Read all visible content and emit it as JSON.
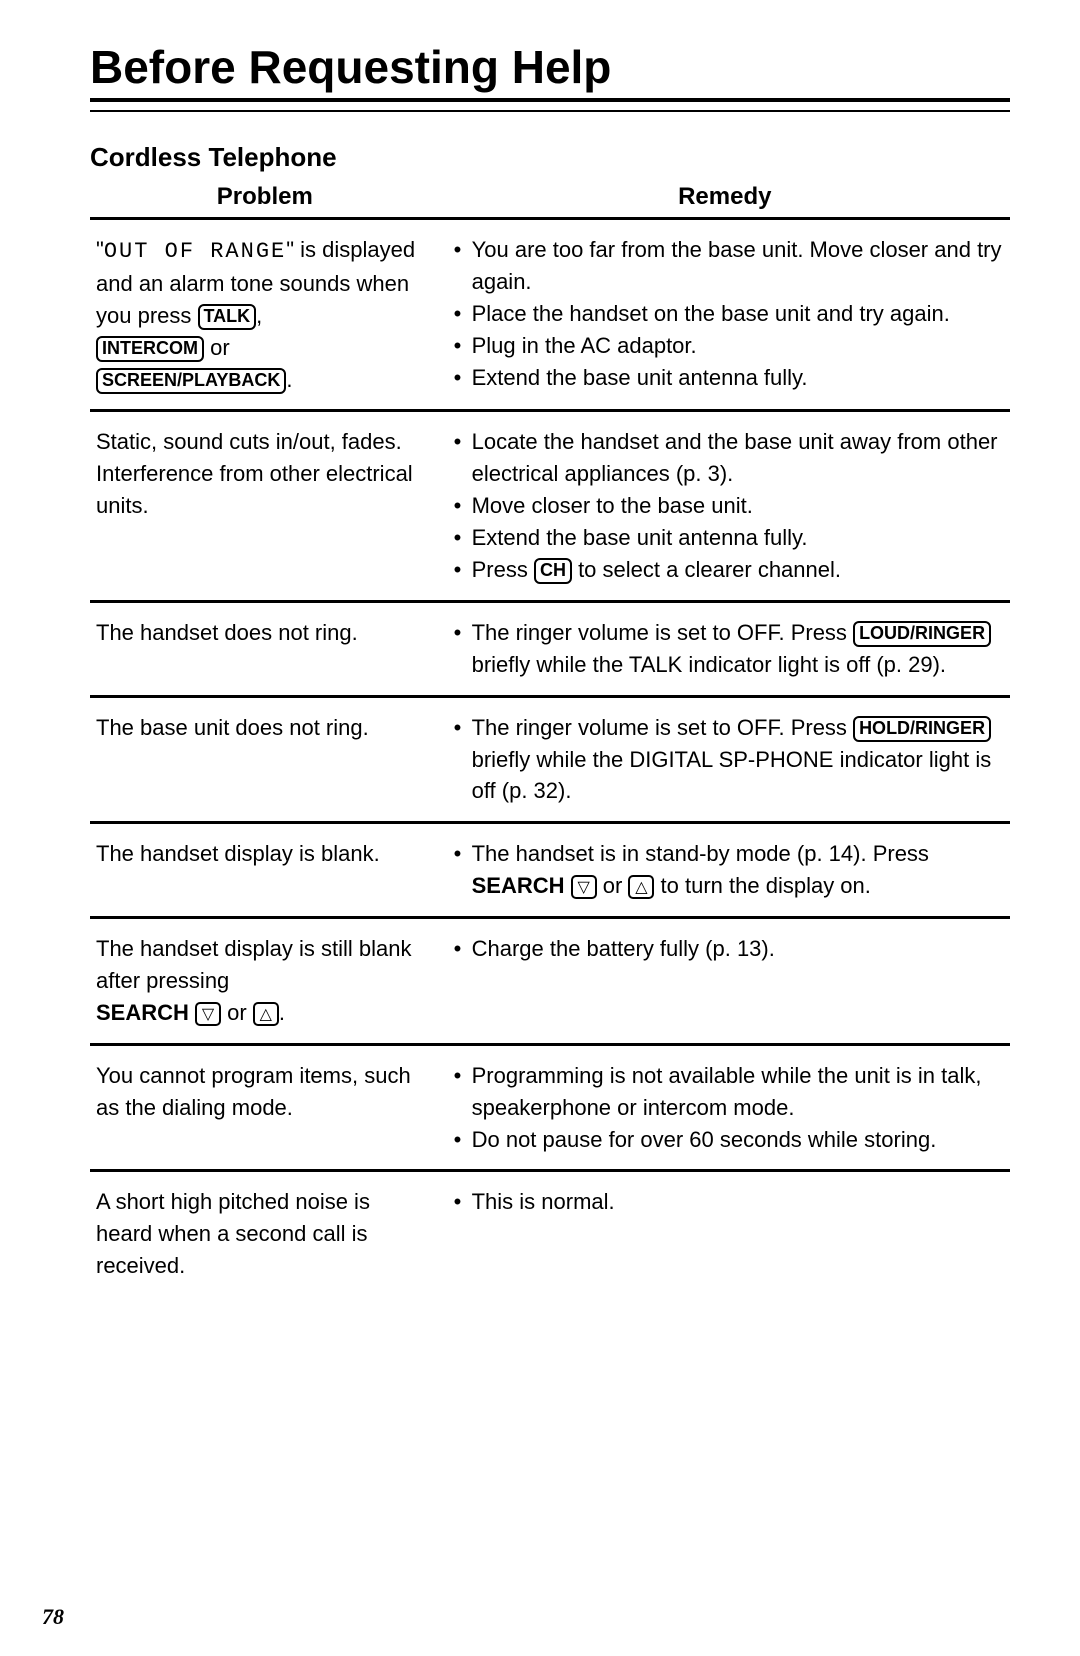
{
  "title": "Before Requesting Help",
  "subtitle": "Cordless Telephone",
  "columns": {
    "problem": "Problem",
    "remedy": "Remedy"
  },
  "page_number": "78",
  "buttons": {
    "talk": "TALK",
    "intercom": "INTERCOM",
    "screen_playback": "SCREEN/PLAYBACK",
    "ch": "CH",
    "loud_ringer": "LOUD/RINGER",
    "hold_ringer": "HOLD/RINGER",
    "search": "SEARCH"
  },
  "rows": {
    "r1": {
      "p_pre": "\"",
      "p_mono": "OUT OF RANGE",
      "p_post": "\" is displayed and an alarm tone sounds when you press ",
      "p_or": " or",
      "p_end": ".",
      "rem1": "You are too far from the base unit. Move closer and try again.",
      "rem2": "Place the handset on the base unit and try again.",
      "rem3": "Plug in the AC adaptor.",
      "rem4": "Extend the base unit antenna fully."
    },
    "r2": {
      "problem": "Static, sound cuts in/out, fades. Interference from other electrical units.",
      "rem1": "Locate the handset and the base unit away from other electrical appliances (p. 3).",
      "rem2": "Move closer to the base unit.",
      "rem3": "Extend the base unit antenna fully.",
      "rem4a": "Press ",
      "rem4b": " to select a clearer channel."
    },
    "r3": {
      "problem": "The handset does not ring.",
      "rem1a": "The ringer volume is set to OFF. Press ",
      "rem1b": " briefly while the TALK indicator light is off (p. 29)."
    },
    "r4": {
      "problem": "The base unit does not ring.",
      "rem1a": "The ringer volume is set to OFF. Press ",
      "rem1b": " briefly while the DIGITAL SP-PHONE indicator light is off (p. 32)."
    },
    "r5": {
      "problem": "The handset display is blank.",
      "rem1a": "The handset is in stand-by mode (p. 14). Press ",
      "rem1_or": " or ",
      "rem1b": " to turn the display on."
    },
    "r6": {
      "p1": "The handset display is still blank after pressing",
      "p_or": " or ",
      "p_end": ".",
      "rem1": "Charge the battery fully (p. 13)."
    },
    "r7": {
      "problem": "You cannot program items, such as the dialing mode.",
      "rem1": "Programming is not available while the unit is in talk, speakerphone or intercom mode.",
      "rem2": "Do not pause for over 60 seconds while storing."
    },
    "r8": {
      "problem": "A short high pitched noise is heard when a second call is received.",
      "rem1": "This is normal."
    }
  },
  "style": {
    "background_color": "#ffffff",
    "text_color": "#000000",
    "border_color": "#000000",
    "title_fontsize": 46,
    "subtitle_fontsize": 26,
    "header_fontsize": 24,
    "body_fontsize": 22,
    "button_fontsize": 18,
    "line_height": 1.45,
    "col_problem_width_pct": 38,
    "col_remedy_width_pct": 62,
    "row_border_width": 3,
    "title_underline_width": 4
  }
}
